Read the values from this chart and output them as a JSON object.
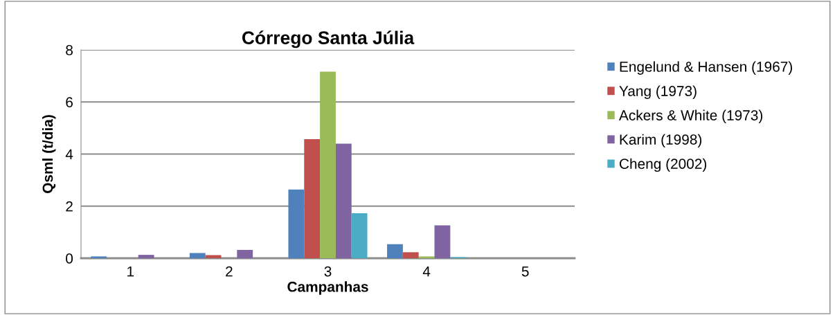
{
  "chart_data": {
    "type": "bar",
    "title": "Córrego Santa Júlia",
    "xlabel": "Campanhas",
    "ylabel": "Qsml (t/dia)",
    "categories": [
      "1",
      "2",
      "3",
      "4",
      "5"
    ],
    "series": [
      {
        "name": "Engelund & Hansen (1967)",
        "color": "#4f81bd",
        "values": [
          0.07,
          0.2,
          2.64,
          0.54,
          0
        ]
      },
      {
        "name": "Yang (1973)",
        "color": "#c0504d",
        "values": [
          0,
          0.12,
          4.57,
          0.23,
          0
        ]
      },
      {
        "name": "Ackers & White (1973)",
        "color": "#9bbb59",
        "values": [
          0,
          0,
          7.16,
          0.07,
          0
        ]
      },
      {
        "name": "Karim (1998)",
        "color": "#8064a2",
        "values": [
          0.13,
          0.32,
          4.4,
          1.26,
          0
        ]
      },
      {
        "name": "Cheng (2002)",
        "color": "#4bacc6",
        "values": [
          0,
          0,
          1.73,
          0.04,
          0
        ]
      }
    ],
    "ylim": [
      0,
      8
    ],
    "yticks": [
      0,
      2,
      4,
      6,
      8
    ],
    "grid": "y",
    "legend": "right"
  }
}
